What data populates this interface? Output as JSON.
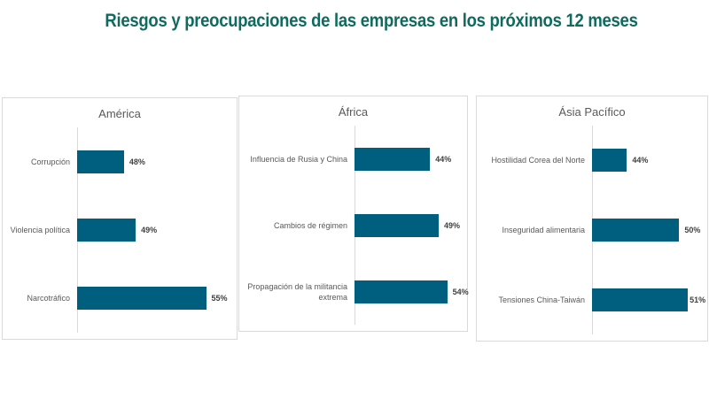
{
  "title": "Riesgos y preocupaciones de las empresas en los próximos 12 meses",
  "chart_data": [
    {
      "type": "bar",
      "orientation": "horizontal",
      "title": "América",
      "categories": [
        "Corrupción",
        "Violencia política",
        "Narcotráfico"
      ],
      "values": [
        48,
        49,
        55
      ],
      "labels": [
        "48%",
        "49%",
        "55%"
      ],
      "xlim": [
        44,
        57
      ],
      "color": "#005e7f"
    },
    {
      "type": "bar",
      "orientation": "horizontal",
      "title": "África",
      "categories": [
        "Influencia de Rusia y China",
        "Cambios de régimen",
        "Propagación de la militancia extrema"
      ],
      "values": [
        44,
        49,
        54
      ],
      "labels": [
        "44%",
        "49%",
        "54%"
      ],
      "xlim": [
        0,
        64
      ],
      "color": "#005e7f"
    },
    {
      "type": "bar",
      "orientation": "horizontal",
      "title": "Ásia Pacífico",
      "categories": [
        "Hostilidad Corea del Norte",
        "Inseguridad alimentaria",
        "Tensiones China-Taiwán"
      ],
      "values": [
        44,
        50,
        51
      ],
      "labels": [
        "44%",
        "50%",
        "51%"
      ],
      "xlim": [
        40,
        52
      ],
      "color": "#005e7f"
    }
  ]
}
